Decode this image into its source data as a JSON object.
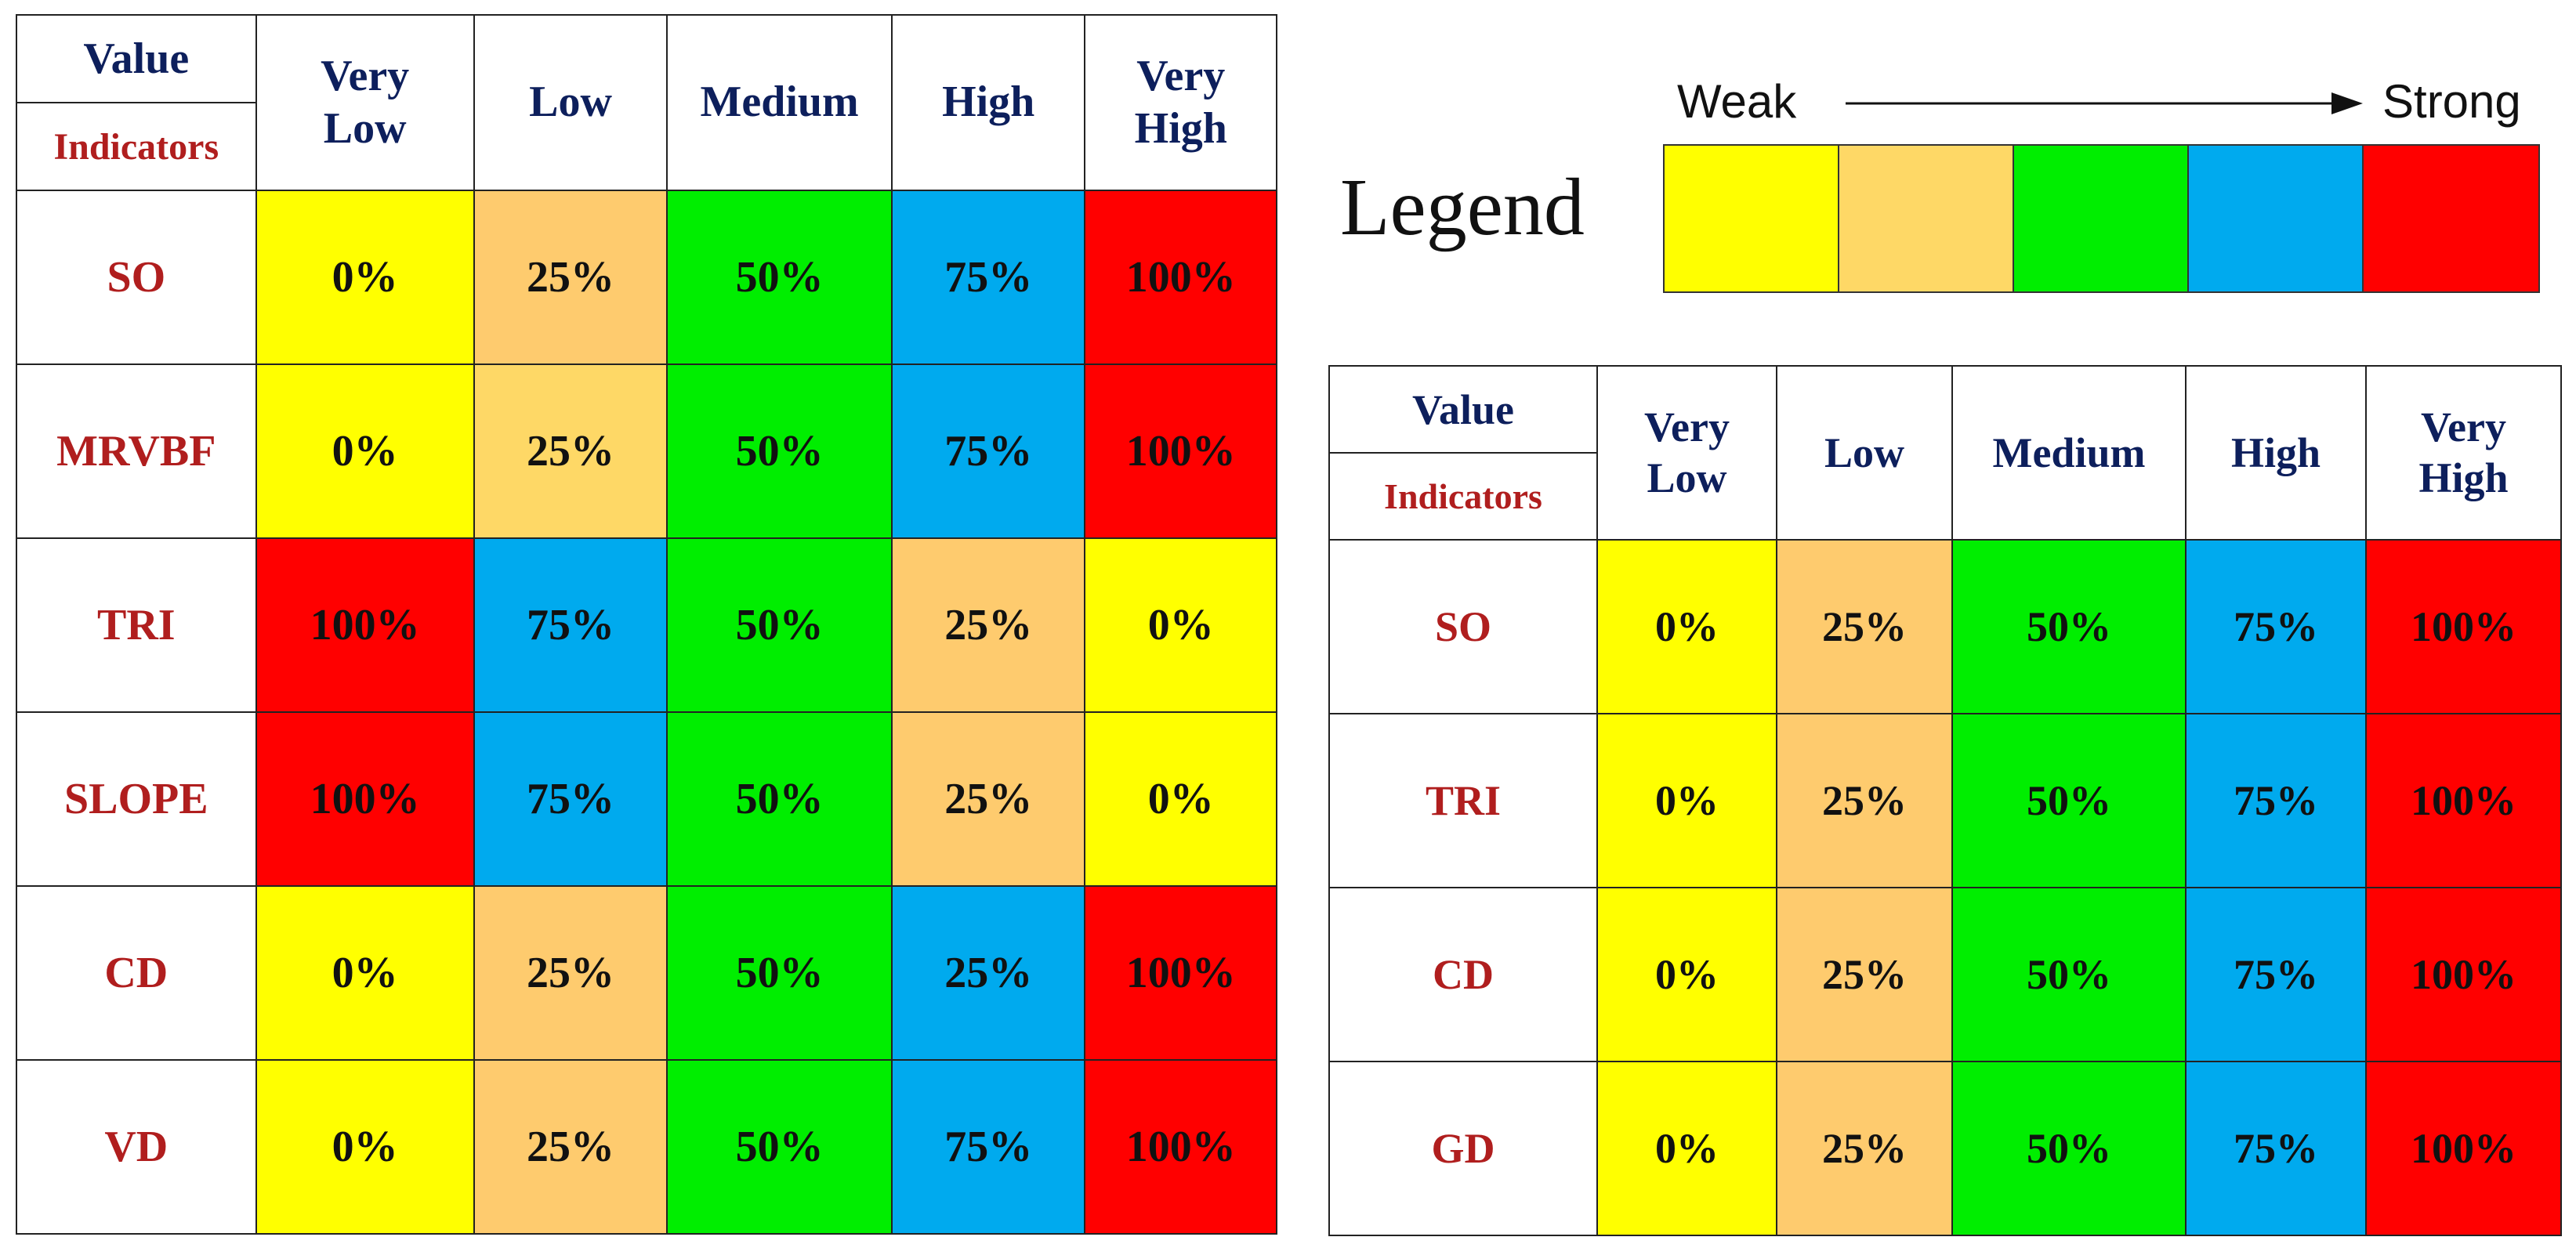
{
  "colors": {
    "very_low": "#ffff00",
    "low": "#fecb6e",
    "low_light": "#fed866",
    "medium": "#00ee00",
    "high": "#00aaee",
    "very_high": "#ff0000"
  },
  "legend": {
    "title": "Legend",
    "weak_label": "Weak",
    "strong_label": "Strong",
    "swatches": [
      "#ffff00",
      "#fed866",
      "#00ee00",
      "#00aaee",
      "#ff0000"
    ]
  },
  "chart_data": [
    {
      "type": "table",
      "corner_top": "Value",
      "corner_bottom": "Indicators",
      "columns": [
        "Very Low",
        "Low",
        "Medium",
        "High",
        "Very High"
      ],
      "rows": [
        {
          "indicator": "SO",
          "values": [
            "0%",
            "25%",
            "50%",
            "75%",
            "100%"
          ],
          "colors": [
            "#ffff00",
            "#fecb6e",
            "#00ee00",
            "#00aaee",
            "#ff0000"
          ]
        },
        {
          "indicator": "MRVBF",
          "values": [
            "0%",
            "25%",
            "50%",
            "75%",
            "100%"
          ],
          "colors": [
            "#ffff00",
            "#fed866",
            "#00ee00",
            "#00aaee",
            "#ff0000"
          ]
        },
        {
          "indicator": "TRI",
          "values": [
            "100%",
            "75%",
            "50%",
            "25%",
            "0%"
          ],
          "colors": [
            "#ff0000",
            "#00aaee",
            "#00ee00",
            "#fecb6e",
            "#ffff00"
          ]
        },
        {
          "indicator": "SLOPE",
          "values": [
            "100%",
            "75%",
            "50%",
            "25%",
            "0%"
          ],
          "colors": [
            "#ff0000",
            "#00aaee",
            "#00ee00",
            "#fecb6e",
            "#ffff00"
          ]
        },
        {
          "indicator": "CD",
          "values": [
            "0%",
            "25%",
            "50%",
            "25%",
            "100%"
          ],
          "colors": [
            "#ffff00",
            "#fecb6e",
            "#00ee00",
            "#00aaee",
            "#ff0000"
          ]
        },
        {
          "indicator": "VD",
          "values": [
            "0%",
            "25%",
            "50%",
            "75%",
            "100%"
          ],
          "colors": [
            "#ffff00",
            "#fecb6e",
            "#00ee00",
            "#00aaee",
            "#ff0000"
          ]
        }
      ]
    },
    {
      "type": "table",
      "corner_top": "Value",
      "corner_bottom": "Indicators",
      "columns": [
        "Very Low",
        "Low",
        "Medium",
        "High",
        "Very High"
      ],
      "rows": [
        {
          "indicator": "SO",
          "values": [
            "0%",
            "25%",
            "50%",
            "75%",
            "100%"
          ],
          "colors": [
            "#ffff00",
            "#fecb6e",
            "#00ee00",
            "#00aaee",
            "#ff0000"
          ]
        },
        {
          "indicator": "TRI",
          "values": [
            "0%",
            "25%",
            "50%",
            "75%",
            "100%"
          ],
          "colors": [
            "#ffff00",
            "#fecb6e",
            "#00ee00",
            "#00aaee",
            "#ff0000"
          ]
        },
        {
          "indicator": "CD",
          "values": [
            "0%",
            "25%",
            "50%",
            "75%",
            "100%"
          ],
          "colors": [
            "#ffff00",
            "#fecb6e",
            "#00ee00",
            "#00aaee",
            "#ff0000"
          ]
        },
        {
          "indicator": "GD",
          "values": [
            "0%",
            "25%",
            "50%",
            "75%",
            "100%"
          ],
          "colors": [
            "#ffff00",
            "#fecb6e",
            "#00ee00",
            "#00aaee",
            "#ff0000"
          ]
        }
      ]
    }
  ]
}
